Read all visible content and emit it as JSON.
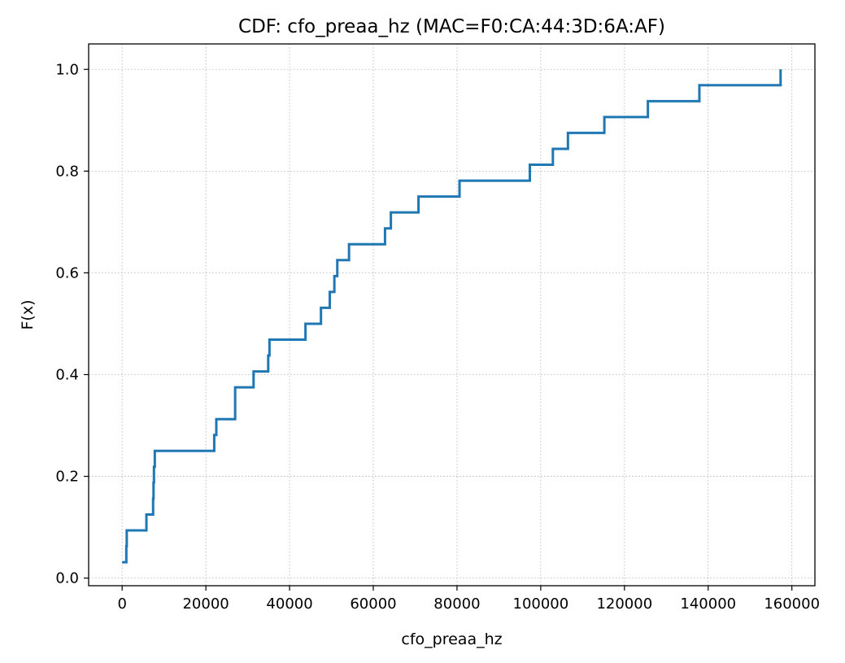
{
  "chart_data": {
    "type": "line",
    "drawstyle": "steps-post",
    "title": "CDF: cfo_preaa_hz (MAC=F0:CA:44:3D:6A:AF)",
    "xlabel": "cfo_preaa_hz",
    "ylabel": "F(x)",
    "xlim": [
      -8000,
      165500
    ],
    "ylim": [
      -0.015,
      1.05
    ],
    "xticks": [
      0,
      20000,
      40000,
      60000,
      80000,
      100000,
      120000,
      140000,
      160000
    ],
    "xtick_labels": [
      "0",
      "20000",
      "40000",
      "60000",
      "80000",
      "100000",
      "120000",
      "140000",
      "160000"
    ],
    "yticks": [
      0.0,
      0.2,
      0.4,
      0.6,
      0.8,
      1.0
    ],
    "ytick_labels": [
      "0.0",
      "0.2",
      "0.4",
      "0.6",
      "0.8",
      "1.0"
    ],
    "grid": true,
    "color": "#1f77b4",
    "series": [
      {
        "x": [
          0,
          1000,
          1100,
          5800,
          7400,
          7500,
          7600,
          7800,
          22000,
          22500,
          22700,
          27000,
          31400,
          34900,
          35200,
          43800,
          47500,
          49600,
          50700,
          51400,
          54200,
          62800,
          64200,
          70800,
          80600,
          97400,
          102900,
          106500,
          115200,
          125600,
          137900,
          157300
        ],
        "y": [
          0.03125,
          0.0625,
          0.09375,
          0.125,
          0.15625,
          0.1875,
          0.21875,
          0.25,
          0.28125,
          0.3125,
          0.3125,
          0.375,
          0.40625,
          0.4375,
          0.46875,
          0.5,
          0.53125,
          0.5625,
          0.59375,
          0.625,
          0.65625,
          0.6875,
          0.71875,
          0.75,
          0.78125,
          0.8125,
          0.84375,
          0.875,
          0.90625,
          0.9375,
          0.96875,
          1.0
        ]
      }
    ]
  }
}
